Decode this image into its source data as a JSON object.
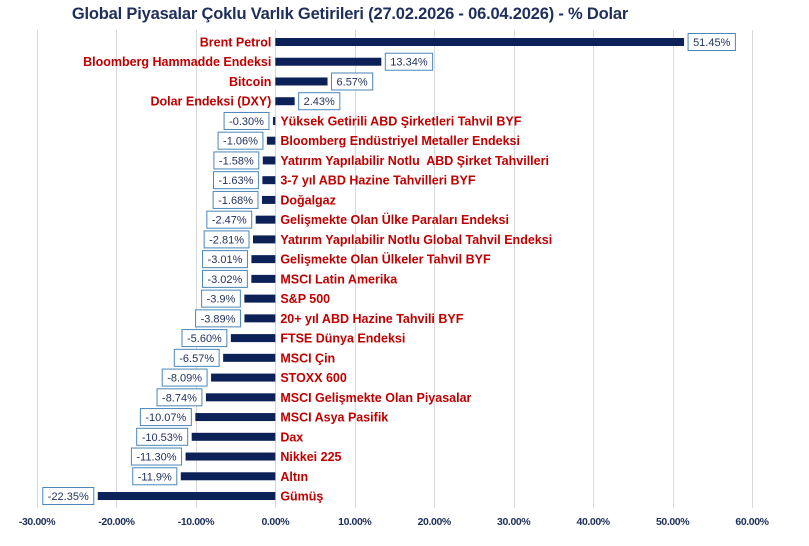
{
  "chart_data": {
    "type": "bar",
    "orientation": "horizontal",
    "title": "Global Piyasalar Çoklu Varlık Getirileri (27.02.2026 - 06.04.2026) - % Dolar",
    "xlabel": "",
    "ylabel": "",
    "xlim": [
      -30,
      60
    ],
    "grid": true,
    "legend": "none",
    "bar_color": "#0b2157",
    "label_color": "#c00000",
    "value_label_color": "#1f2f5c",
    "value_box_border": "#4a86b8",
    "gridline_color": "#d9d9d9",
    "tick_labels": [
      "-30.00%",
      "-20.00%",
      "-10.00%",
      "0.00%",
      "10.00%",
      "20.00%",
      "30.00%",
      "40.00%",
      "50.00%",
      "60.00%"
    ],
    "ticks": [
      -30,
      -20,
      -10,
      0,
      10,
      20,
      30,
      40,
      50,
      60
    ],
    "categories": [
      "Brent Petrol",
      "Bloomberg Hammadde Endeksi",
      "Bitcoin",
      "Dolar Endeksi (DXY)",
      "Yüksek Getirili ABD Şirketleri Tahvil BYF",
      "Bloomberg Endüstriyel Metaller Endeksi",
      "Yatırım Yapılabilir Notlu  ABD Şirket Tahvilleri",
      "3-7 yıl ABD Hazine Tahvilleri BYF",
      "Doğalgaz",
      "Gelişmekte Olan Ülke Paraları Endeksi",
      "Yatırım Yapılabilir Notlu Global Tahvil Endeksi",
      "Gelişmekte Olan Ülkeler Tahvil BYF",
      "MSCI Latin Amerika",
      "S&P 500",
      "20+ yıl ABD Hazine Tahvili BYF",
      "FTSE Dünya Endeksi",
      "MSCI Çin",
      "STOXX 600",
      "MSCI Gelişmekte Olan Piyasalar",
      "MSCI Asya Pasifik",
      "Dax",
      "Nikkei 225",
      "Altın",
      "Gümüş"
    ],
    "values": [
      51.45,
      13.34,
      6.57,
      2.43,
      -0.3,
      -1.06,
      -1.58,
      -1.63,
      -1.68,
      -2.47,
      -2.81,
      -3.01,
      -3.02,
      -3.9,
      -3.89,
      -5.6,
      -6.57,
      -8.09,
      -8.74,
      -10.07,
      -10.53,
      -11.3,
      -11.9,
      -22.35
    ],
    "value_labels": [
      "51.45%",
      "13.34%",
      "6.57%",
      "2.43%",
      "-0.30%",
      "-1.06%",
      "-1.58%",
      "-1.63%",
      "-1.68%",
      "-2.47%",
      "-2.81%",
      "-3.01%",
      "-3.02%",
      "-3.9%",
      "-3.89%",
      "-5.60%",
      "-6.57%",
      "-8.09%",
      "-8.74%",
      "-10.07%",
      "-10.53%",
      "-11.30%",
      "-11.9%",
      "-22.35%"
    ]
  }
}
